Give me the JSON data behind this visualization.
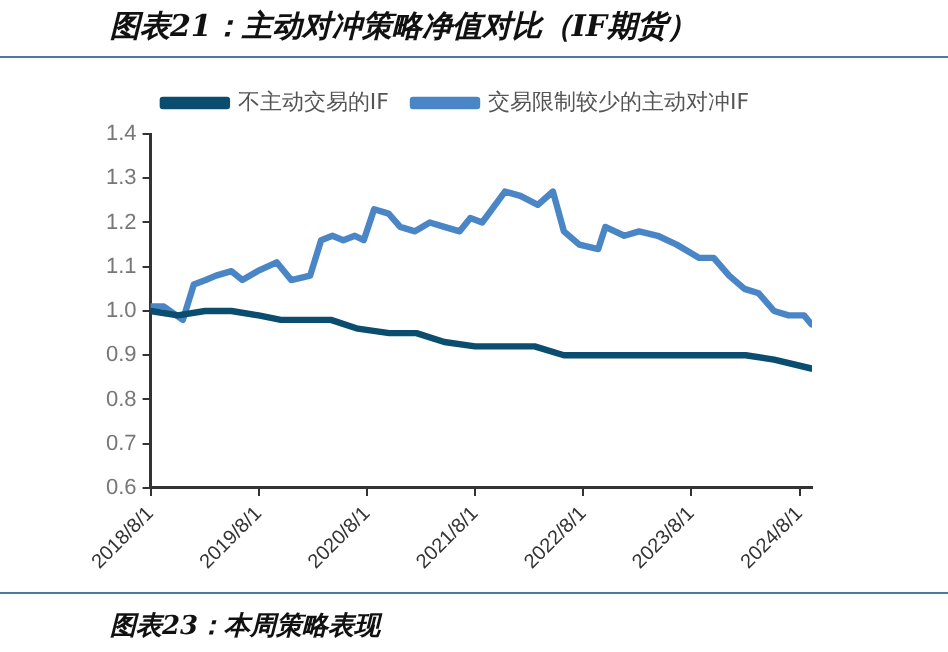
{
  "chart_data": {
    "type": "line",
    "title": "图表21：主动对冲策略净值对比（IF期货）",
    "xlim": [
      "2018-08-01",
      "2024-09-12"
    ],
    "xticks": [
      {
        "value": "2018-08-01",
        "label": "2018/8/1"
      },
      {
        "value": "2019-08-01",
        "label": "2019/8/1"
      },
      {
        "value": "2020-08-01",
        "label": "2020/8/1"
      },
      {
        "value": "2021-08-01",
        "label": "2021/8/1"
      },
      {
        "value": "2022-08-01",
        "label": "2022/8/1"
      },
      {
        "value": "2023-08-01",
        "label": "2023/8/1"
      },
      {
        "value": "2024-08-01",
        "label": "2024/8/1"
      }
    ],
    "ylim": [
      0.6,
      1.4
    ],
    "yticks": [
      0.6,
      0.7,
      0.8,
      0.9,
      {
        "value": 1,
        "label": "1.0"
      },
      1.1,
      1.2,
      1.3,
      1.4
    ],
    "grid": false,
    "legend": "top",
    "marker": "none",
    "line_style": "solid",
    "annotations": [
      "图表23：本周策略表现"
    ],
    "series": [
      {
        "name": "不主动交易的IF",
        "color": "#0b4d6e",
        "x": [
          "2018-08-01",
          "2018-11-01",
          "2019-02-01",
          "2019-05-01",
          "2019-08-01",
          "2019-10-15",
          "2020-01-20",
          "2020-04-01",
          "2020-07-01",
          "2020-10-15",
          "2021-01-15",
          "2021-04-19",
          "2021-08-01",
          "2021-11-10",
          "2022-02-18",
          "2022-05-28",
          "2022-09-08",
          "2022-12-18",
          "2023-03-28",
          "2023-09-01",
          "2024-02-01",
          "2024-05-07",
          "2024-09-10"
        ],
        "values": [
          1.0,
          0.99,
          1.0,
          1.0,
          0.99,
          0.98,
          0.98,
          0.98,
          0.96,
          0.95,
          0.95,
          0.93,
          0.92,
          0.92,
          0.92,
          0.9,
          0.9,
          0.9,
          0.9,
          0.9,
          0.9,
          0.89,
          0.87
        ]
      },
      {
        "name": "交易限制较少的主动对冲IF",
        "color": "#4a86c5",
        "x": [
          "2018-08-01",
          "2018-09-15",
          "2018-11-18",
          "2018-12-25",
          "2019-02-03",
          "2019-03-10",
          "2019-05-01",
          "2019-06-07",
          "2019-07-28",
          "2019-10-01",
          "2019-11-19",
          "2020-01-22",
          "2020-02-28",
          "2020-04-06",
          "2020-05-13",
          "2020-06-21",
          "2020-07-21",
          "2020-08-25",
          "2020-10-13",
          "2020-11-21",
          "2021-01-10",
          "2021-03-01",
          "2021-04-19",
          "2021-06-10",
          "2021-07-16",
          "2021-08-25",
          "2021-11-10",
          "2022-01-01",
          "2022-03-01",
          "2022-04-21",
          "2022-05-28",
          "2022-07-19",
          "2022-09-21",
          "2022-10-15",
          "2022-12-18",
          "2023-02-06",
          "2023-04-10",
          "2023-06-13",
          "2023-08-28",
          "2023-10-16",
          "2023-12-07",
          "2024-01-28",
          "2024-03-16",
          "2024-05-07",
          "2024-06-25",
          "2024-08-16",
          "2024-09-10"
        ],
        "values": [
          1.01,
          1.01,
          0.98,
          1.06,
          1.07,
          1.08,
          1.09,
          1.07,
          1.09,
          1.11,
          1.07,
          1.08,
          1.16,
          1.17,
          1.16,
          1.17,
          1.16,
          1.23,
          1.22,
          1.19,
          1.18,
          1.2,
          1.19,
          1.18,
          1.21,
          1.2,
          1.27,
          1.26,
          1.24,
          1.27,
          1.18,
          1.15,
          1.14,
          1.19,
          1.17,
          1.18,
          1.17,
          1.15,
          1.12,
          1.12,
          1.08,
          1.05,
          1.04,
          1.0,
          0.99,
          0.99,
          0.97
        ]
      }
    ]
  }
}
